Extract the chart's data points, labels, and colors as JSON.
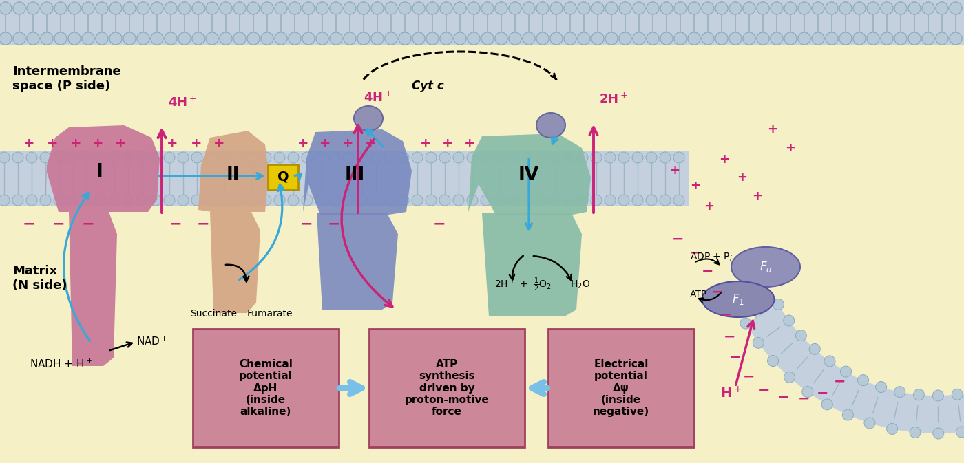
{
  "bg_color": "#f5f0c5",
  "mem_outer_color": "#c5d0de",
  "mem_circle_color": "#b8cad8",
  "mem_circle_edge": "#8aacbe",
  "mem_tail_color": "#a0b5c5",
  "complex_I_color": "#c87898",
  "complex_II_color": "#d4a585",
  "complex_III_color": "#7888c0",
  "complex_IV_color": "#88bba8",
  "cytc_color": "#9090b5",
  "Fo_color": "#9090b8",
  "F1_color": "#8888b0",
  "Q_fill": "#e8c800",
  "Q_edge": "#b09000",
  "arrow_blue": "#38a8d8",
  "arrow_magenta": "#cc2277",
  "box_pink": "#cc8898",
  "box_arrow_blue": "#78c0e8",
  "plus_color": "#cc2277",
  "minus_color": "#cc2277",
  "text_box1": "Chemical\npotential\nΔpH\n(inside\nalkaline)",
  "text_box2": "ATP\nsynthesis\ndriven by\nproton-motive\nforce",
  "text_box3": "Electrical\npotential\nΔψ\n(inside\nnegative)"
}
